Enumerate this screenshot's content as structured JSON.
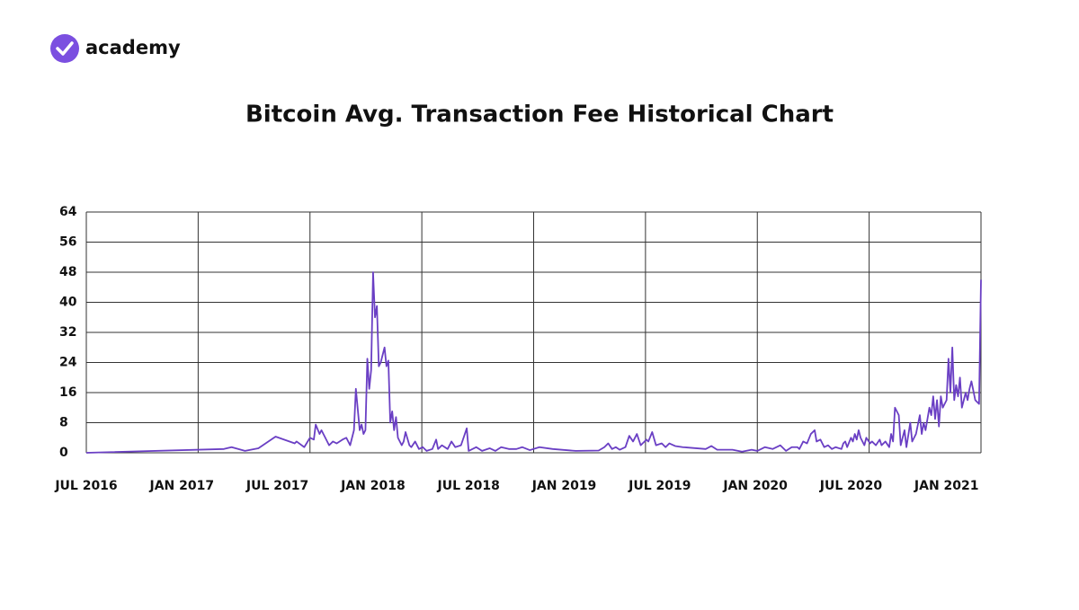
{
  "brand": "academy",
  "chart_data": {
    "type": "line",
    "title": "Bitcoin Avg. Transaction Fee Historical Chart",
    "x": [
      2016.5,
      2017.22,
      2017.26,
      2017.33,
      2017.4,
      2017.49,
      2017.59,
      2017.6,
      2017.64,
      2017.67,
      2017.69,
      2017.7,
      2017.72,
      2017.73,
      2017.77,
      2017.79,
      2017.81,
      2017.84,
      2017.86,
      2017.88,
      2017.9,
      2017.91,
      2017.93,
      2017.94,
      2017.95,
      2017.96,
      2017.97,
      2017.98,
      2017.99,
      2018.0,
      2018.01,
      2018.02,
      2018.03,
      2018.04,
      2018.06,
      2018.07,
      2018.08,
      2018.09,
      2018.1,
      2018.11,
      2018.12,
      2018.13,
      2018.15,
      2018.16,
      2018.17,
      2018.19,
      2018.2,
      2018.22,
      2018.24,
      2018.26,
      2018.28,
      2018.31,
      2018.33,
      2018.34,
      2018.36,
      2018.39,
      2018.41,
      2018.43,
      2018.46,
      2018.49,
      2018.5,
      2018.54,
      2018.57,
      2018.61,
      2018.64,
      2018.67,
      2018.71,
      2018.75,
      2018.78,
      2018.82,
      2018.87,
      2018.94,
      2019.06,
      2019.18,
      2019.21,
      2019.23,
      2019.25,
      2019.27,
      2019.29,
      2019.32,
      2019.34,
      2019.36,
      2019.38,
      2019.4,
      2019.43,
      2019.44,
      2019.46,
      2019.48,
      2019.51,
      2019.53,
      2019.55,
      2019.58,
      2019.62,
      2019.74,
      2019.77,
      2019.8,
      2019.88,
      2019.93,
      2019.98,
      2020.01,
      2020.05,
      2020.09,
      2020.13,
      2020.16,
      2020.19,
      2020.22,
      2020.23,
      2020.25,
      2020.27,
      2020.29,
      2020.31,
      2020.32,
      2020.34,
      2020.36,
      2020.38,
      2020.4,
      2020.42,
      2020.45,
      2020.46,
      2020.47,
      2020.48,
      2020.5,
      2020.51,
      2020.52,
      2020.53,
      2020.54,
      2020.55,
      2020.57,
      2020.58,
      2020.6,
      2020.61,
      2020.63,
      2020.65,
      2020.66,
      2020.68,
      2020.7,
      2020.71,
      2020.72,
      2020.73,
      2020.75,
      2020.76,
      2020.78,
      2020.79,
      2020.81,
      2020.82,
      2020.84,
      2020.86,
      2020.87,
      2020.88,
      2020.89,
      2020.91,
      2020.92,
      2020.93,
      2020.94,
      2020.95,
      2020.96,
      2020.97,
      2020.98,
      2021.0,
      2021.01,
      2021.02,
      2021.03,
      2021.04,
      2021.05,
      2021.06,
      2021.07,
      2021.08,
      2021.1,
      2021.11,
      2021.12,
      2021.13,
      2021.15,
      2021.17,
      2021.18
    ],
    "series": [
      {
        "color": "#6a3fc4",
        "values": [
          0,
          1,
          1.5,
          0.5,
          1.2,
          4.3,
          2.5,
          3,
          1.5,
          4,
          3.5,
          7.5,
          5,
          6,
          2,
          3,
          2.5,
          3.5,
          4,
          2,
          6,
          17,
          6,
          7.5,
          5,
          6,
          25,
          17,
          22,
          48,
          36,
          39,
          23,
          24,
          28,
          23,
          24.5,
          8,
          11,
          6,
          9.5,
          4,
          2,
          3,
          5.5,
          2,
          1.5,
          3,
          1,
          1.5,
          0.5,
          1,
          3.5,
          1,
          2,
          1,
          3,
          1.5,
          2,
          6.5,
          0.5,
          1.5,
          0.5,
          1.2,
          0.5,
          1.5,
          1,
          1,
          1.5,
          0.7,
          1.5,
          1,
          0.5,
          0.6,
          1.5,
          2.5,
          1,
          1.5,
          0.8,
          1.5,
          4.5,
          3,
          5,
          2,
          3.5,
          3,
          5.5,
          2,
          2.5,
          1.5,
          2.5,
          1.8,
          1.5,
          1,
          1.8,
          0.8,
          0.8,
          0.3,
          0.8,
          0.5,
          1.5,
          1,
          2,
          0.5,
          1.5,
          1.5,
          1,
          3,
          2.5,
          5,
          6,
          3,
          3.5,
          1.5,
          2,
          1,
          1.5,
          1,
          2.5,
          3,
          1.5,
          4,
          3,
          5,
          3.5,
          6,
          4,
          2,
          4,
          2.5,
          3,
          2,
          3.5,
          2,
          3,
          1.5,
          5,
          3,
          12,
          10,
          2,
          6,
          1.5,
          8,
          3,
          5,
          10,
          5,
          8,
          6,
          12,
          10,
          15,
          9,
          14,
          7,
          15,
          12,
          14,
          25,
          16,
          28,
          14,
          18,
          15,
          20,
          12,
          16,
          14,
          17,
          19,
          14,
          13,
          46
        ]
      }
    ],
    "xlim": [
      2016.5,
      2021.18
    ],
    "xticks": [
      {
        "value": 2016.5,
        "label": "JUL 2016"
      },
      {
        "value": 2017,
        "label": "JAN 2017"
      },
      {
        "value": 2017.5,
        "label": "JUL 2017"
      },
      {
        "value": 2018,
        "label": "JAN 2018"
      },
      {
        "value": 2018.5,
        "label": "JUL 2018"
      },
      {
        "value": 2019,
        "label": "JAN 2019"
      },
      {
        "value": 2019.5,
        "label": "JUL 2019"
      },
      {
        "value": 2020,
        "label": "JAN 2020"
      },
      {
        "value": 2020.5,
        "label": "JUL 2020"
      },
      {
        "value": 2021,
        "label": "JAN 2021"
      }
    ],
    "ylim": [
      0,
      64
    ],
    "yticks": [
      0,
      8,
      16,
      24,
      32,
      40,
      48,
      56,
      64
    ],
    "grid": true
  }
}
